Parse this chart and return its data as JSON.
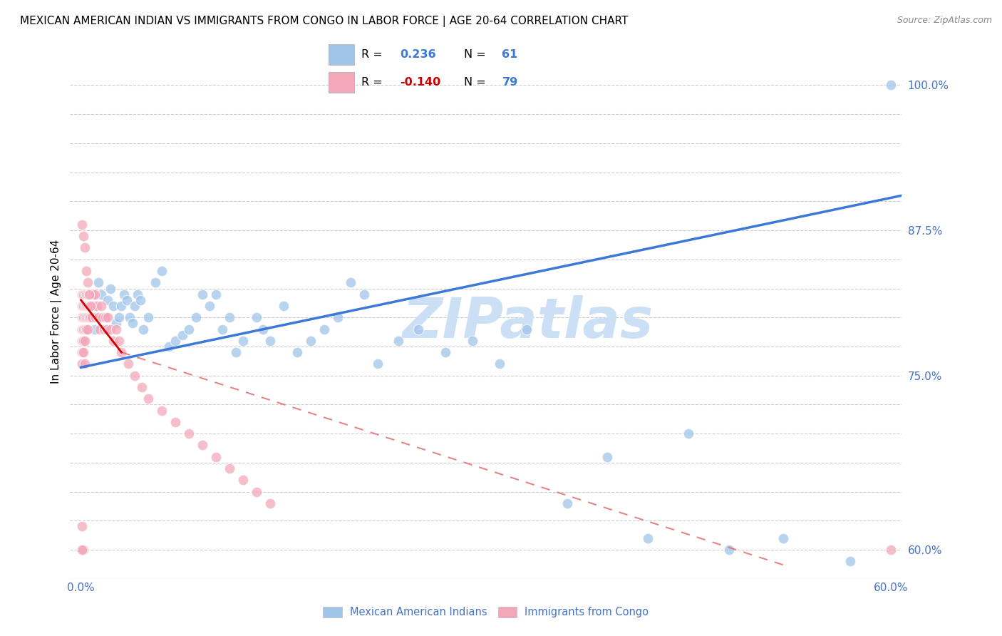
{
  "title": "MEXICAN AMERICAN INDIAN VS IMMIGRANTS FROM CONGO IN LABOR FORCE | AGE 20-64 CORRELATION CHART",
  "source": "Source: ZipAtlas.com",
  "ylabel": "In Labor Force | Age 20-64",
  "ytick_positions": [
    0.6,
    0.625,
    0.65,
    0.675,
    0.7,
    0.725,
    0.75,
    0.775,
    0.8,
    0.825,
    0.85,
    0.875,
    0.9,
    0.925,
    0.95,
    0.975,
    1.0
  ],
  "ytick_labels": [
    "60.0%",
    "",
    "",
    "",
    "",
    "",
    "75.0%",
    "",
    "",
    "",
    "",
    "87.5%",
    "",
    "",
    "",
    "",
    "100.0%"
  ],
  "xlim": [
    -0.008,
    0.608
  ],
  "ylim": [
    0.575,
    1.035
  ],
  "R_blue": "0.236",
  "N_blue": "61",
  "R_pink": "-0.140",
  "N_pink": "79",
  "color_blue": "#9fc5e8",
  "color_pink": "#f4a7b9",
  "trendline_blue_color": "#3c78d8",
  "trendline_pink_solid_color": "#cc0000",
  "trendline_pink_dash_color": "#e06666",
  "watermark": "ZIPatlas",
  "watermark_color": "#cce0f5",
  "legend_label_blue": "Mexican American Indians",
  "legend_label_pink": "Immigrants from Congo",
  "blue_x": [
    0.003,
    0.005,
    0.008,
    0.01,
    0.013,
    0.015,
    0.018,
    0.02,
    0.022,
    0.024,
    0.026,
    0.028,
    0.03,
    0.032,
    0.034,
    0.036,
    0.038,
    0.04,
    0.042,
    0.044,
    0.046,
    0.05,
    0.055,
    0.06,
    0.065,
    0.07,
    0.075,
    0.08,
    0.085,
    0.09,
    0.095,
    0.1,
    0.105,
    0.11,
    0.115,
    0.12,
    0.13,
    0.135,
    0.14,
    0.15,
    0.16,
    0.17,
    0.18,
    0.19,
    0.2,
    0.21,
    0.22,
    0.235,
    0.25,
    0.27,
    0.29,
    0.31,
    0.33,
    0.36,
    0.39,
    0.42,
    0.45,
    0.48,
    0.52,
    0.57,
    0.6
  ],
  "blue_y": [
    0.8,
    0.82,
    0.81,
    0.79,
    0.83,
    0.82,
    0.8,
    0.815,
    0.825,
    0.81,
    0.795,
    0.8,
    0.81,
    0.82,
    0.815,
    0.8,
    0.795,
    0.81,
    0.82,
    0.815,
    0.79,
    0.8,
    0.83,
    0.84,
    0.775,
    0.78,
    0.785,
    0.79,
    0.8,
    0.82,
    0.81,
    0.82,
    0.79,
    0.8,
    0.77,
    0.78,
    0.8,
    0.79,
    0.78,
    0.81,
    0.77,
    0.78,
    0.79,
    0.8,
    0.83,
    0.82,
    0.76,
    0.78,
    0.79,
    0.77,
    0.78,
    0.76,
    0.79,
    0.64,
    0.68,
    0.61,
    0.7,
    0.6,
    0.61,
    0.59,
    1.0
  ],
  "pink_x": [
    0.001,
    0.001,
    0.001,
    0.001,
    0.001,
    0.001,
    0.002,
    0.002,
    0.002,
    0.002,
    0.002,
    0.002,
    0.003,
    0.003,
    0.003,
    0.003,
    0.003,
    0.004,
    0.004,
    0.004,
    0.004,
    0.005,
    0.005,
    0.005,
    0.005,
    0.006,
    0.006,
    0.006,
    0.007,
    0.007,
    0.007,
    0.008,
    0.008,
    0.008,
    0.009,
    0.009,
    0.01,
    0.01,
    0.011,
    0.012,
    0.013,
    0.014,
    0.015,
    0.016,
    0.017,
    0.018,
    0.019,
    0.02,
    0.022,
    0.024,
    0.026,
    0.028,
    0.03,
    0.035,
    0.04,
    0.045,
    0.05,
    0.06,
    0.07,
    0.08,
    0.09,
    0.1,
    0.11,
    0.12,
    0.13,
    0.14,
    0.001,
    0.001,
    0.002,
    0.003,
    0.003,
    0.004,
    0.005,
    0.006,
    0.007,
    0.001,
    0.002,
    0.001,
    0.6
  ],
  "pink_y": [
    0.82,
    0.81,
    0.8,
    0.79,
    0.78,
    0.77,
    0.82,
    0.81,
    0.8,
    0.79,
    0.78,
    0.77,
    0.82,
    0.81,
    0.8,
    0.79,
    0.78,
    0.82,
    0.81,
    0.8,
    0.79,
    0.82,
    0.81,
    0.8,
    0.79,
    0.82,
    0.81,
    0.8,
    0.82,
    0.81,
    0.8,
    0.82,
    0.81,
    0.8,
    0.82,
    0.81,
    0.82,
    0.81,
    0.8,
    0.81,
    0.8,
    0.79,
    0.81,
    0.8,
    0.79,
    0.8,
    0.79,
    0.8,
    0.79,
    0.78,
    0.79,
    0.78,
    0.77,
    0.76,
    0.75,
    0.74,
    0.73,
    0.72,
    0.71,
    0.7,
    0.69,
    0.68,
    0.67,
    0.66,
    0.65,
    0.64,
    0.88,
    0.76,
    0.87,
    0.86,
    0.76,
    0.84,
    0.83,
    0.82,
    0.81,
    0.62,
    0.6,
    0.6,
    0.6
  ]
}
